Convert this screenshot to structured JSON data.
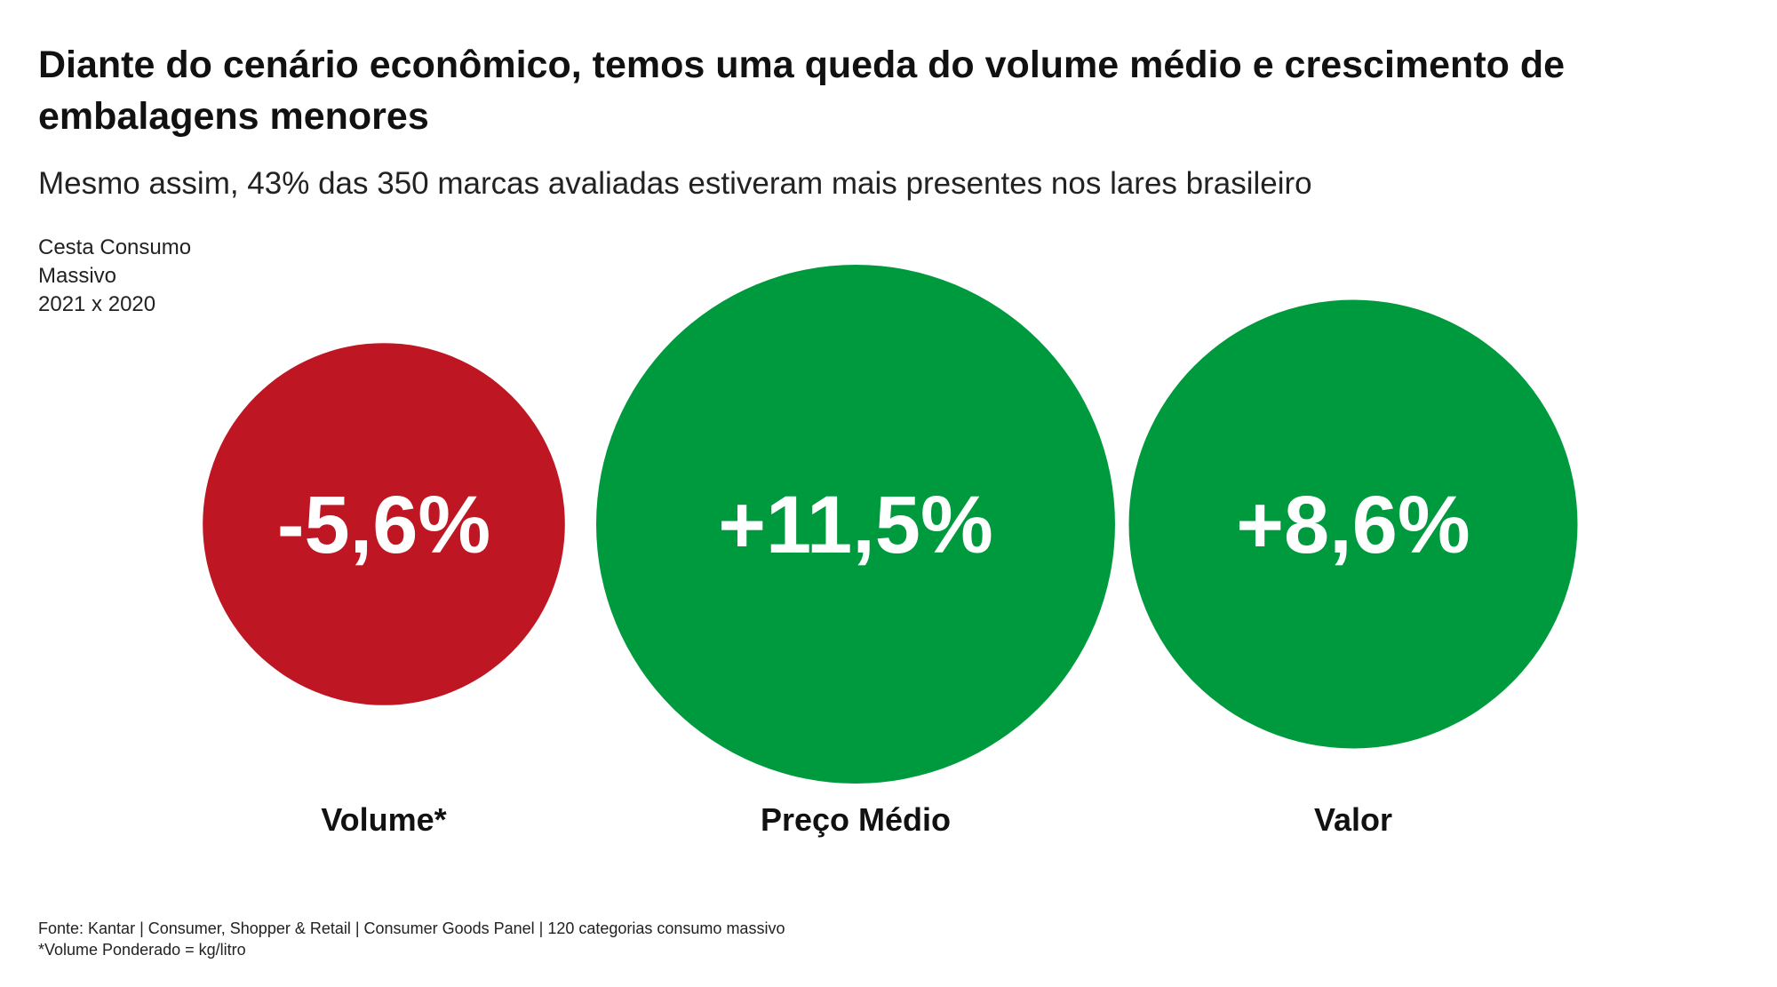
{
  "header": {
    "title": "Diante do cenário econômico, temos uma queda do volume médio e crescimento de embalagens menores",
    "subtitle": "Mesmo assim, 43% das 350 marcas avaliadas estiveram mais presentes nos lares brasileiro"
  },
  "context": {
    "line1": "Cesta Consumo",
    "line2": "Massivo",
    "line3": "2021 x 2020"
  },
  "chart_data": {
    "type": "bubble",
    "categories": [
      "Volume*",
      "Preço Médio",
      "Valor"
    ],
    "values": [
      -5.6,
      11.5,
      8.6
    ],
    "value_labels": [
      "-5,6%",
      "+11,5%",
      "+8,6%"
    ],
    "colors": [
      "#BE1622",
      "#009A3E",
      "#009A3E"
    ],
    "unit": "%"
  },
  "footer": {
    "source": "Fonte: Kantar | Consumer, Shopper & Retail | Consumer Goods Panel | 120 categorias consumo massivo",
    "note": "*Volume Ponderado = kg/litro"
  }
}
